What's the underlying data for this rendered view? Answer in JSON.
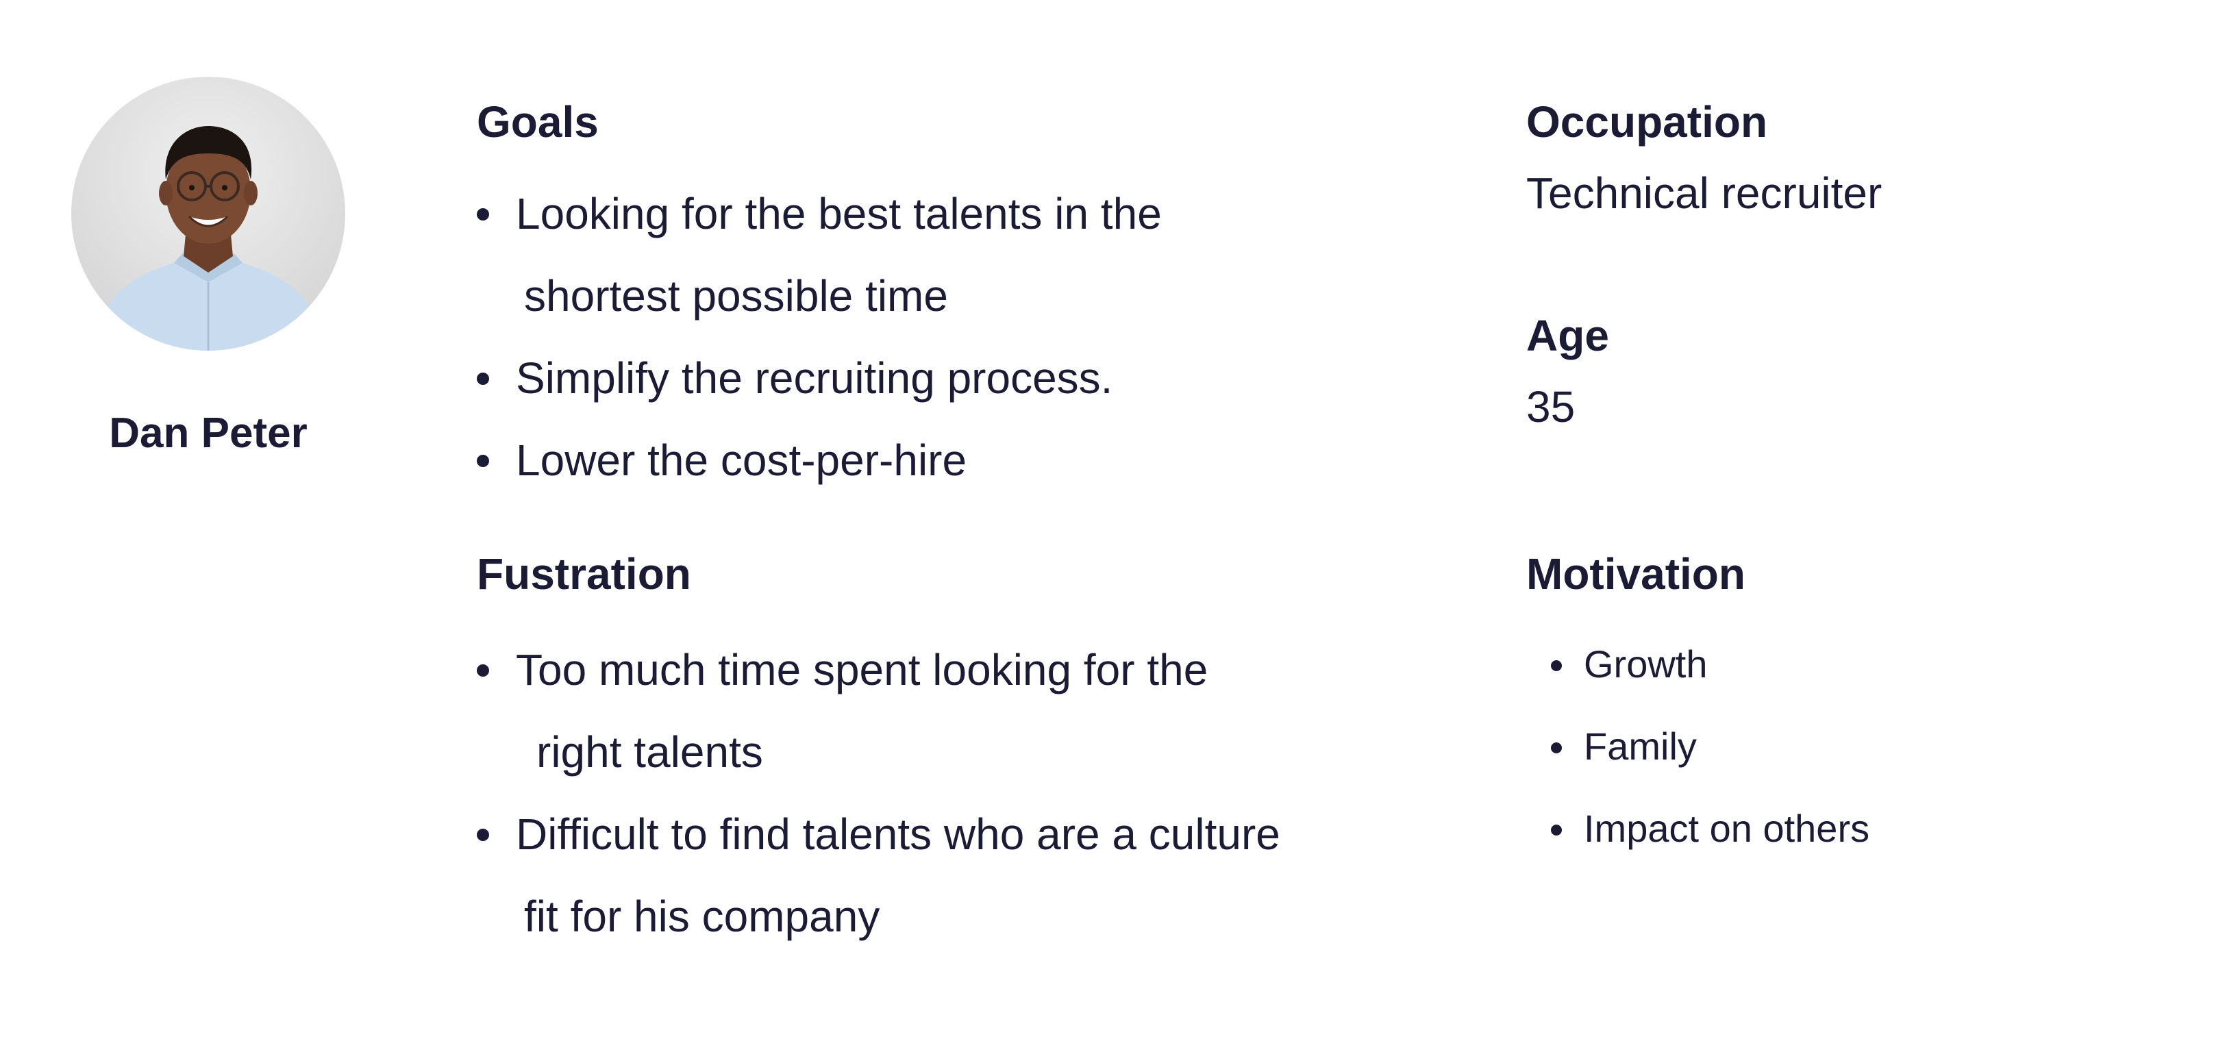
{
  "persona": {
    "name": "Dan Peter",
    "avatar_icon": "person-photo-icon"
  },
  "goals": {
    "title": "Goals",
    "items": [
      {
        "line1": "Looking for the best talents in the",
        "line2": "shortest possible time"
      },
      {
        "line1": "Simplify the recruiting process.",
        "line2": ""
      },
      {
        "line1": "Lower the cost-per-hire",
        "line2": ""
      }
    ]
  },
  "frustration": {
    "title": "Fustration",
    "items": [
      {
        "line1": "Too much time spent looking for the",
        "line2": "right talents"
      },
      {
        "line1": "Difficult to find talents who are a culture",
        "line2": "fit for his company"
      }
    ]
  },
  "occupation": {
    "title": "Occupation",
    "value": "Technical recruiter"
  },
  "age": {
    "title": "Age",
    "value": "35"
  },
  "motivation": {
    "title": "Motivation",
    "items": [
      "Growth",
      "Family",
      "Impact on others"
    ]
  },
  "colors": {
    "text": "#1c1b36",
    "background": "#ffffff",
    "shirt": "#c9dcef",
    "skin": "#7a4a32"
  }
}
